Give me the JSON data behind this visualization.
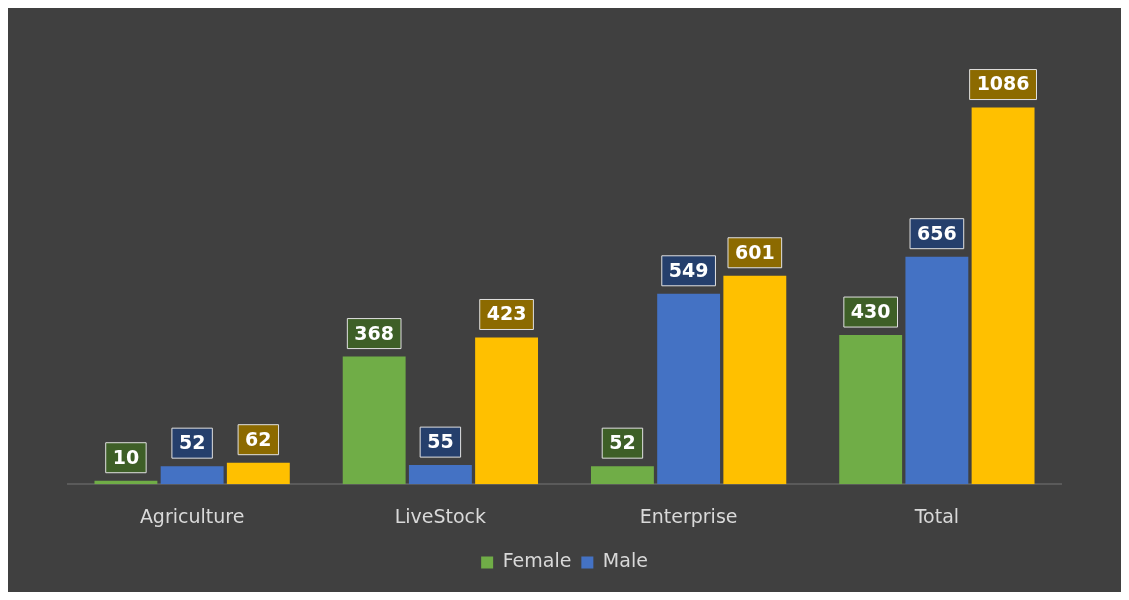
{
  "chart_data": {
    "type": "bar",
    "categories": [
      "Agriculture",
      "LiveStock",
      "Enterprise",
      "Total"
    ],
    "series": [
      {
        "name": "Female",
        "color": "#70ad47",
        "values": [
          10,
          368,
          52,
          430
        ]
      },
      {
        "name": "Male",
        "color": "#4472c4",
        "values": [
          52,
          55,
          549,
          656
        ]
      },
      {
        "color": "#ffc000",
        "values": [
          62,
          423,
          601,
          1086
        ]
      }
    ],
    "data_labels": true,
    "legend": "bottom",
    "grid": false
  }
}
